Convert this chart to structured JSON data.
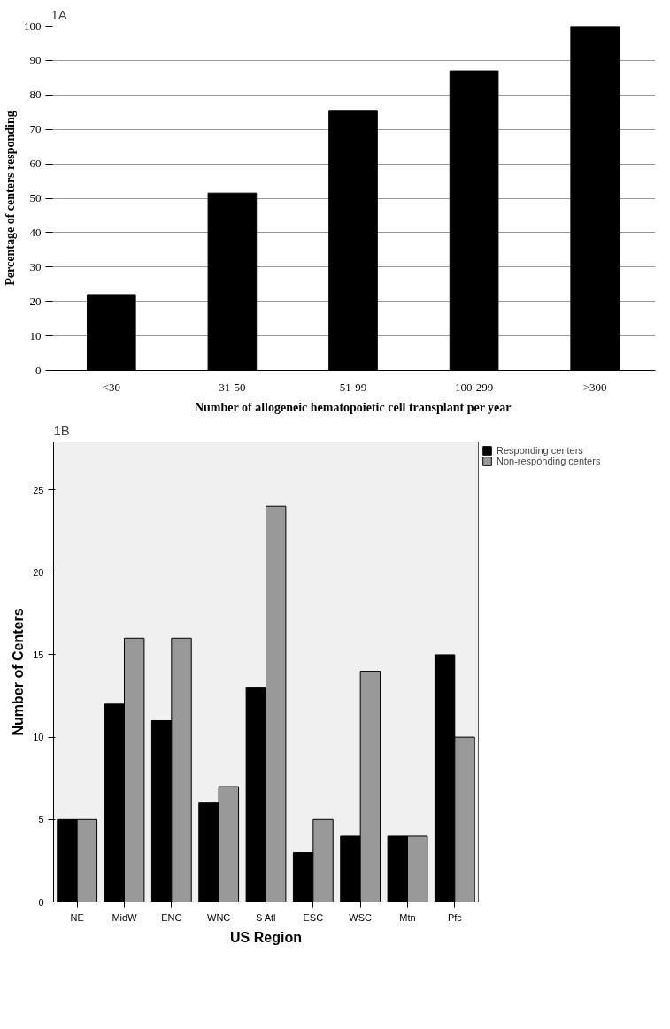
{
  "chart_data": [
    {
      "type": "bar",
      "annotations": [
        "1A"
      ],
      "xlabel": "Number of allogeneic hematopoietic cell transplant per year",
      "ylabel": "Percentage of centers responding",
      "categories": [
        "<30",
        "31-50",
        "51-99",
        "100-299",
        ">300"
      ],
      "values": [
        22,
        51.5,
        75.5,
        87,
        100
      ],
      "color": "#000000",
      "ylim": [
        0,
        100
      ],
      "yticks": [
        0,
        10,
        20,
        30,
        40,
        50,
        60,
        70,
        80,
        90,
        100
      ],
      "grid": "y"
    },
    {
      "type": "bar",
      "annotations": [
        "1B"
      ],
      "xlabel": "US Region",
      "ylabel": "Number of Centers",
      "categories": [
        "NE",
        "MidW",
        "ENC",
        "WNC",
        "S Atl",
        "ESC",
        "WSC",
        "Mtn",
        "Pfc"
      ],
      "series": [
        {
          "name": "Responding centers",
          "color": "#000000",
          "values": [
            5,
            12,
            11,
            6,
            13,
            3,
            4,
            4,
            15
          ]
        },
        {
          "name": "Non-responding centers",
          "color": "#999999",
          "values": [
            5,
            16,
            16,
            7,
            24,
            5,
            14,
            4,
            10
          ]
        }
      ],
      "ylim": [
        0,
        27.9
      ],
      "yticks": [
        0,
        5,
        10,
        15,
        20,
        25
      ],
      "grid": false,
      "legend": "top right"
    }
  ]
}
